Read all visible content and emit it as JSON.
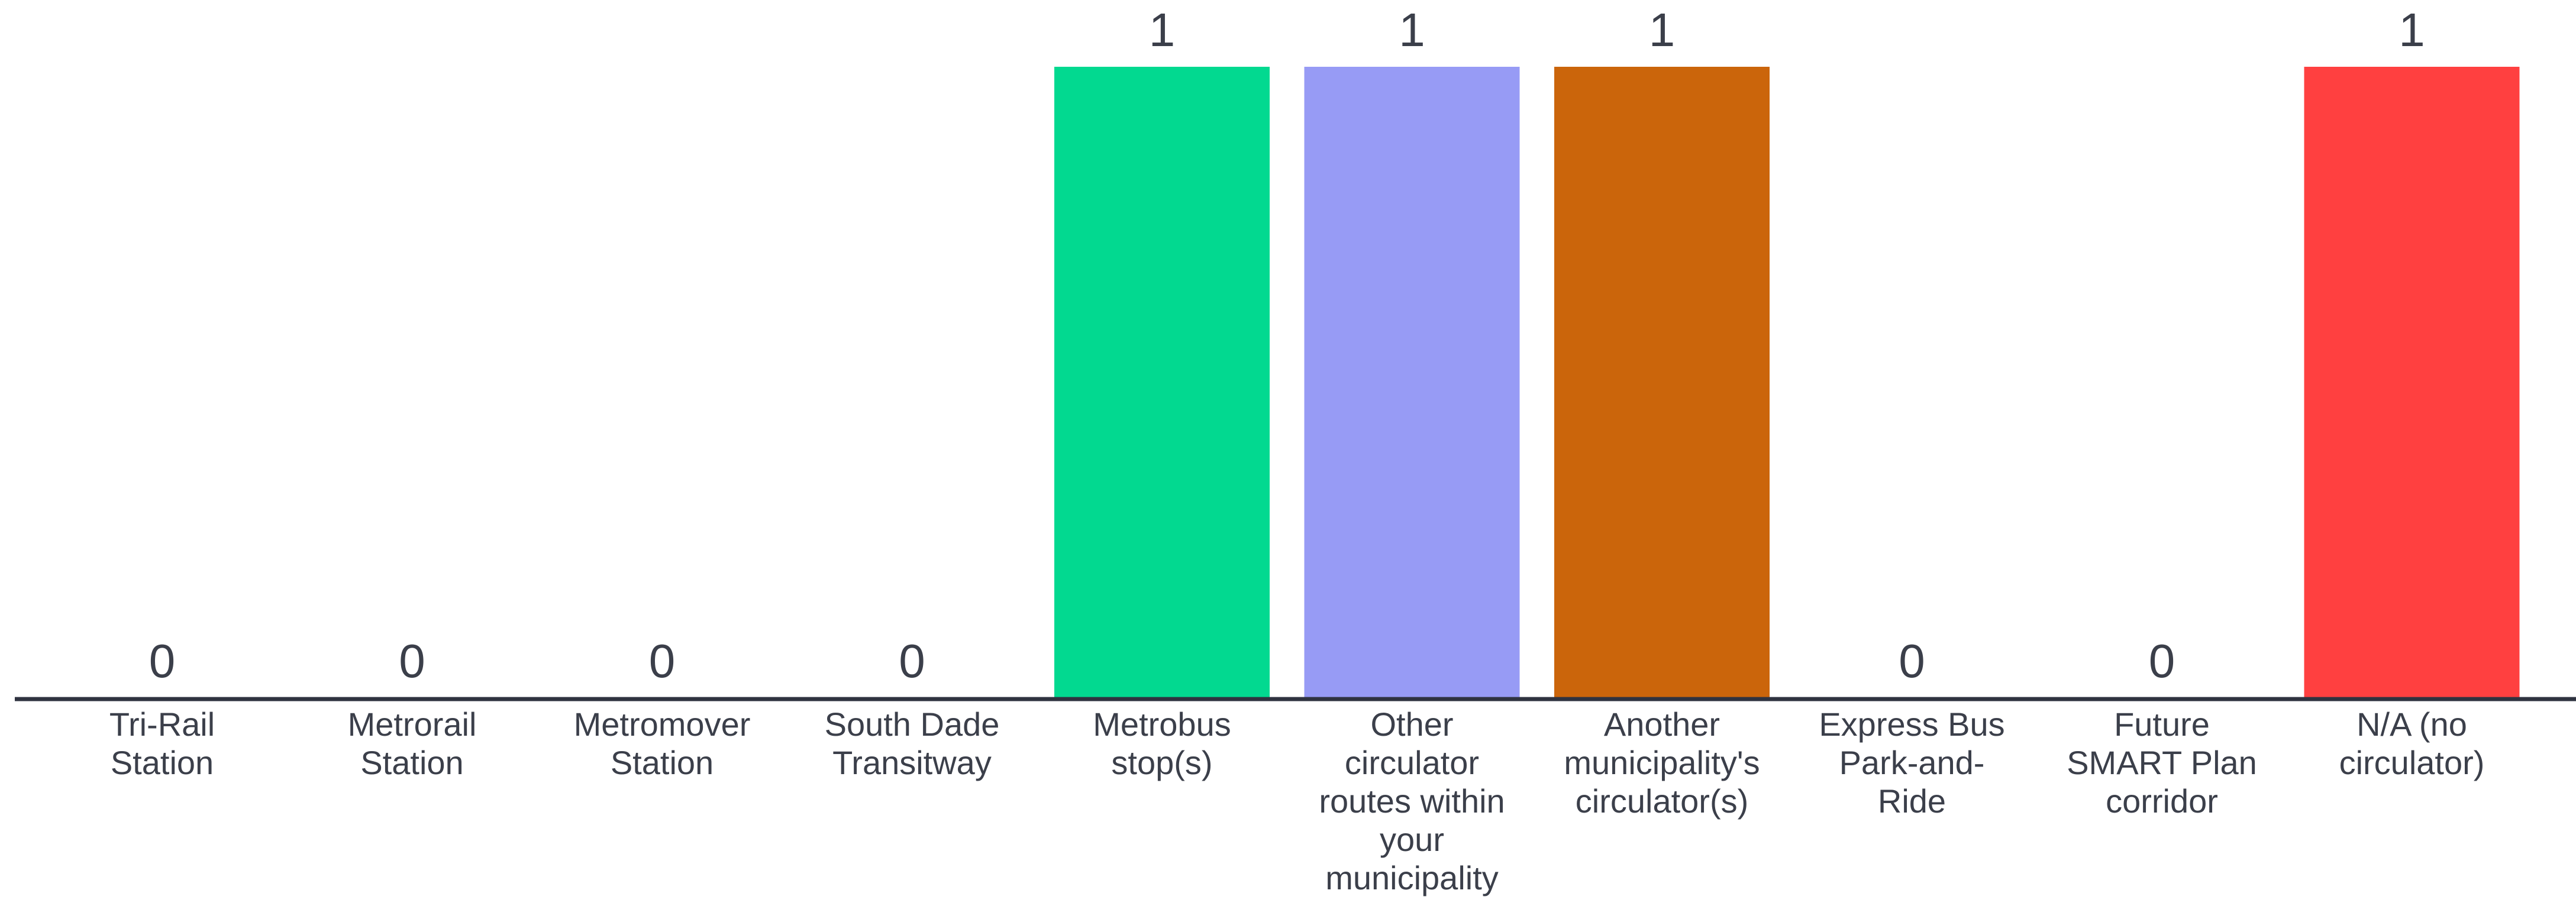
{
  "chart_data": {
    "type": "bar",
    "categories": [
      [
        "Tri-Rail",
        "Station"
      ],
      [
        "Metrorail",
        "Station"
      ],
      [
        "Metromover",
        "Station"
      ],
      [
        "South Dade",
        "Transitway"
      ],
      [
        "Metrobus",
        "stop(s)"
      ],
      [
        "Other",
        "circulator",
        "routes within",
        "your",
        "municipality"
      ],
      [
        "Another",
        "municipality's",
        "circulator(s)"
      ],
      [
        "Express Bus",
        "Park-and-",
        "Ride"
      ],
      [
        "Future",
        "SMART Plan",
        "corridor"
      ],
      [
        "N/A (no",
        "circulator)"
      ]
    ],
    "values": [
      0,
      0,
      0,
      0,
      1,
      1,
      1,
      0,
      0,
      1
    ],
    "colors": [
      "#02D990",
      "#02D990",
      "#02D990",
      "#02D990",
      "#02D990",
      "#979BF5",
      "#CB650B",
      "#02D990",
      "#02D990",
      "#FF4040"
    ],
    "ylim": [
      0,
      1
    ],
    "grid": false,
    "legend": "none",
    "xlabel": "",
    "ylabel": ""
  }
}
